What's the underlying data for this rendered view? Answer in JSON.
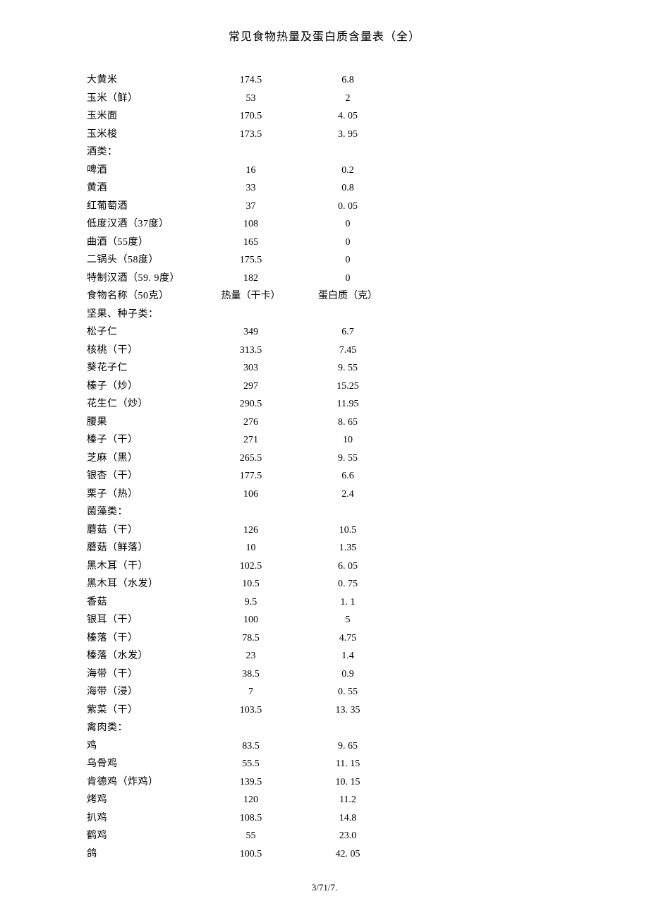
{
  "title": "常见食物热量及蛋白质含量表（全）",
  "page_number": "3/71/7.",
  "rows": [
    {
      "name": "大黄米",
      "calorie": "174.5",
      "protein": "6.8"
    },
    {
      "name": "玉米（鲜）",
      "calorie": "53",
      "protein": "2"
    },
    {
      "name": "玉米面",
      "calorie": "170.5",
      "protein": "4. 05"
    },
    {
      "name": "玉米梭",
      "calorie": "173.5",
      "protein": "3. 95"
    },
    {
      "name": "酒类：",
      "calorie": "",
      "protein": ""
    },
    {
      "name": "啤酒",
      "calorie": "16",
      "protein": "0.2"
    },
    {
      "name": "黄酒",
      "calorie": "33",
      "protein": "0.8"
    },
    {
      "name": "红葡萄酒",
      "calorie": "37",
      "protein": "0. 05"
    },
    {
      "name": "低度汉酒（37度）",
      "calorie": "108",
      "protein": "0"
    },
    {
      "name": "曲酒（55度）",
      "calorie": "165",
      "protein": "0"
    },
    {
      "name": "二锅头（58度）",
      "calorie": "175.5",
      "protein": "0"
    },
    {
      "name": "特制汉酒（59. 9度）",
      "calorie": "182",
      "protein": "0"
    },
    {
      "name": "食物名称（50克）",
      "calorie": "热量（干卡）",
      "protein": "蛋白质（克）"
    },
    {
      "name": "坚果、种子类：",
      "calorie": "",
      "protein": ""
    },
    {
      "name": "松子仁",
      "calorie": "349",
      "protein": "6.7"
    },
    {
      "name": "核桃（干）",
      "calorie": "313.5",
      "protein": "7.45"
    },
    {
      "name": "葵花子仁",
      "calorie": "303",
      "protein": "9. 55"
    },
    {
      "name": "榛子（炒）",
      "calorie": "297",
      "protein": "15.25"
    },
    {
      "name": "花生仁（炒）",
      "calorie": "290.5",
      "protein": "11.95"
    },
    {
      "name": "腰果",
      "calorie": "276",
      "protein": "8. 65"
    },
    {
      "name": "榛子（干）",
      "calorie": "271",
      "protein": "10"
    },
    {
      "name": "芝麻（黑）",
      "calorie": "265.5",
      "protein": "9. 55"
    },
    {
      "name": "银杏（干）",
      "calorie": "177.5",
      "protein": "6.6"
    },
    {
      "name": "栗子（热）",
      "calorie": "106",
      "protein": "2.4"
    },
    {
      "name": "菌藻类：",
      "calorie": "",
      "protein": ""
    },
    {
      "name": "蘑菇（干）",
      "calorie": "126",
      "protein": "10.5"
    },
    {
      "name": "蘑菇（鲜落）",
      "calorie": "10",
      "protein": "1.35"
    },
    {
      "name": "黑木耳（干）",
      "calorie": "102.5",
      "protein": "6. 05"
    },
    {
      "name": "黑木耳（水发）",
      "calorie": "10.5",
      "protein": "0. 75"
    },
    {
      "name": "香菇",
      "calorie": "9.5",
      "protein": "1. 1"
    },
    {
      "name": "银耳（干）",
      "calorie": "100",
      "protein": "5"
    },
    {
      "name": "榛落（干）",
      "calorie": "78.5",
      "protein": "4.75"
    },
    {
      "name": "榛落（水发）",
      "calorie": "23",
      "protein": "1.4"
    },
    {
      "name": "海带（干）",
      "calorie": "38.5",
      "protein": "0.9"
    },
    {
      "name": "海带（浸）",
      "calorie": "7",
      "protein": "0. 55"
    },
    {
      "name": "紫菜（干）",
      "calorie": "103.5",
      "protein": "13. 35"
    },
    {
      "name": "禽肉类：",
      "calorie": "",
      "protein": ""
    },
    {
      "name": "鸡",
      "calorie": "83.5",
      "protein": "9. 65"
    },
    {
      "name": "乌骨鸡",
      "calorie": "55.5",
      "protein": "11. 15"
    },
    {
      "name": "肯德鸡（炸鸡）",
      "calorie": "139.5",
      "protein": "10. 15"
    },
    {
      "name": "烤鸡",
      "calorie": "120",
      "protein": "11.2"
    },
    {
      "name": "扒鸡",
      "calorie": "108.5",
      "protein": "14.8"
    },
    {
      "name": "鹤鸡",
      "calorie": "55",
      "protein": "23.0"
    },
    {
      "name": "鸽",
      "calorie": "100.5",
      "protein": "42. 05"
    }
  ]
}
